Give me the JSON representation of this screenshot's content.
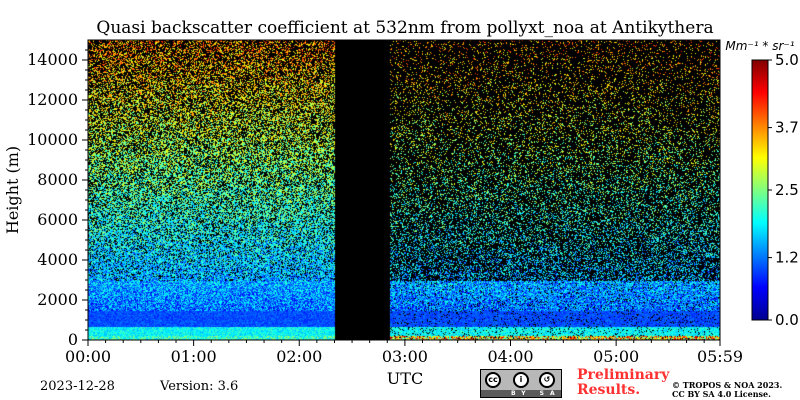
{
  "chart_data": {
    "type": "heatmap",
    "title": "Quasi backscatter coefficient at 532nm from pollyxt_noa at Antikythera",
    "xlabel": "UTC",
    "ylabel": "Height (m)",
    "x_tick_labels": [
      "00:00",
      "01:00",
      "02:00",
      "03:00",
      "04:00",
      "05:00",
      "05:59"
    ],
    "x_tick_minutes": [
      0,
      60,
      120,
      180,
      240,
      300,
      359
    ],
    "xlim_minutes": [
      0,
      359
    ],
    "y_ticks": [
      0,
      2000,
      4000,
      6000,
      8000,
      10000,
      12000,
      14000
    ],
    "y_tick_labels": [
      "0",
      "2000",
      "4000",
      "6000",
      "8000",
      "10000",
      "12000",
      "14000"
    ],
    "ylim": [
      0,
      15000
    ],
    "colorbar": {
      "unit_label": "Mm⁻¹ * sr⁻¹",
      "range": [
        0.0,
        5.0
      ],
      "ticks": [
        0.0,
        1.2,
        2.5,
        3.7,
        5.0
      ],
      "tick_labels": [
        "0.0",
        "1.2",
        "2.5",
        "3.7",
        "5.0"
      ],
      "colormap": "jet"
    },
    "no_data_intervals_minutes": [
      [
        140,
        171
      ]
    ],
    "background_color": "#000000"
  },
  "footer": {
    "date": "2023-12-28",
    "version": "Version: 3.6",
    "preliminary_line1": "Preliminary",
    "preliminary_line2": "Results.",
    "copyright_line1": "© TROPOS & NOA 2023.",
    "copyright_line2": "CC BY SA 4.0 License.",
    "license_badge_text": "BY SA",
    "license_icon": "cc-by-sa-icon"
  }
}
